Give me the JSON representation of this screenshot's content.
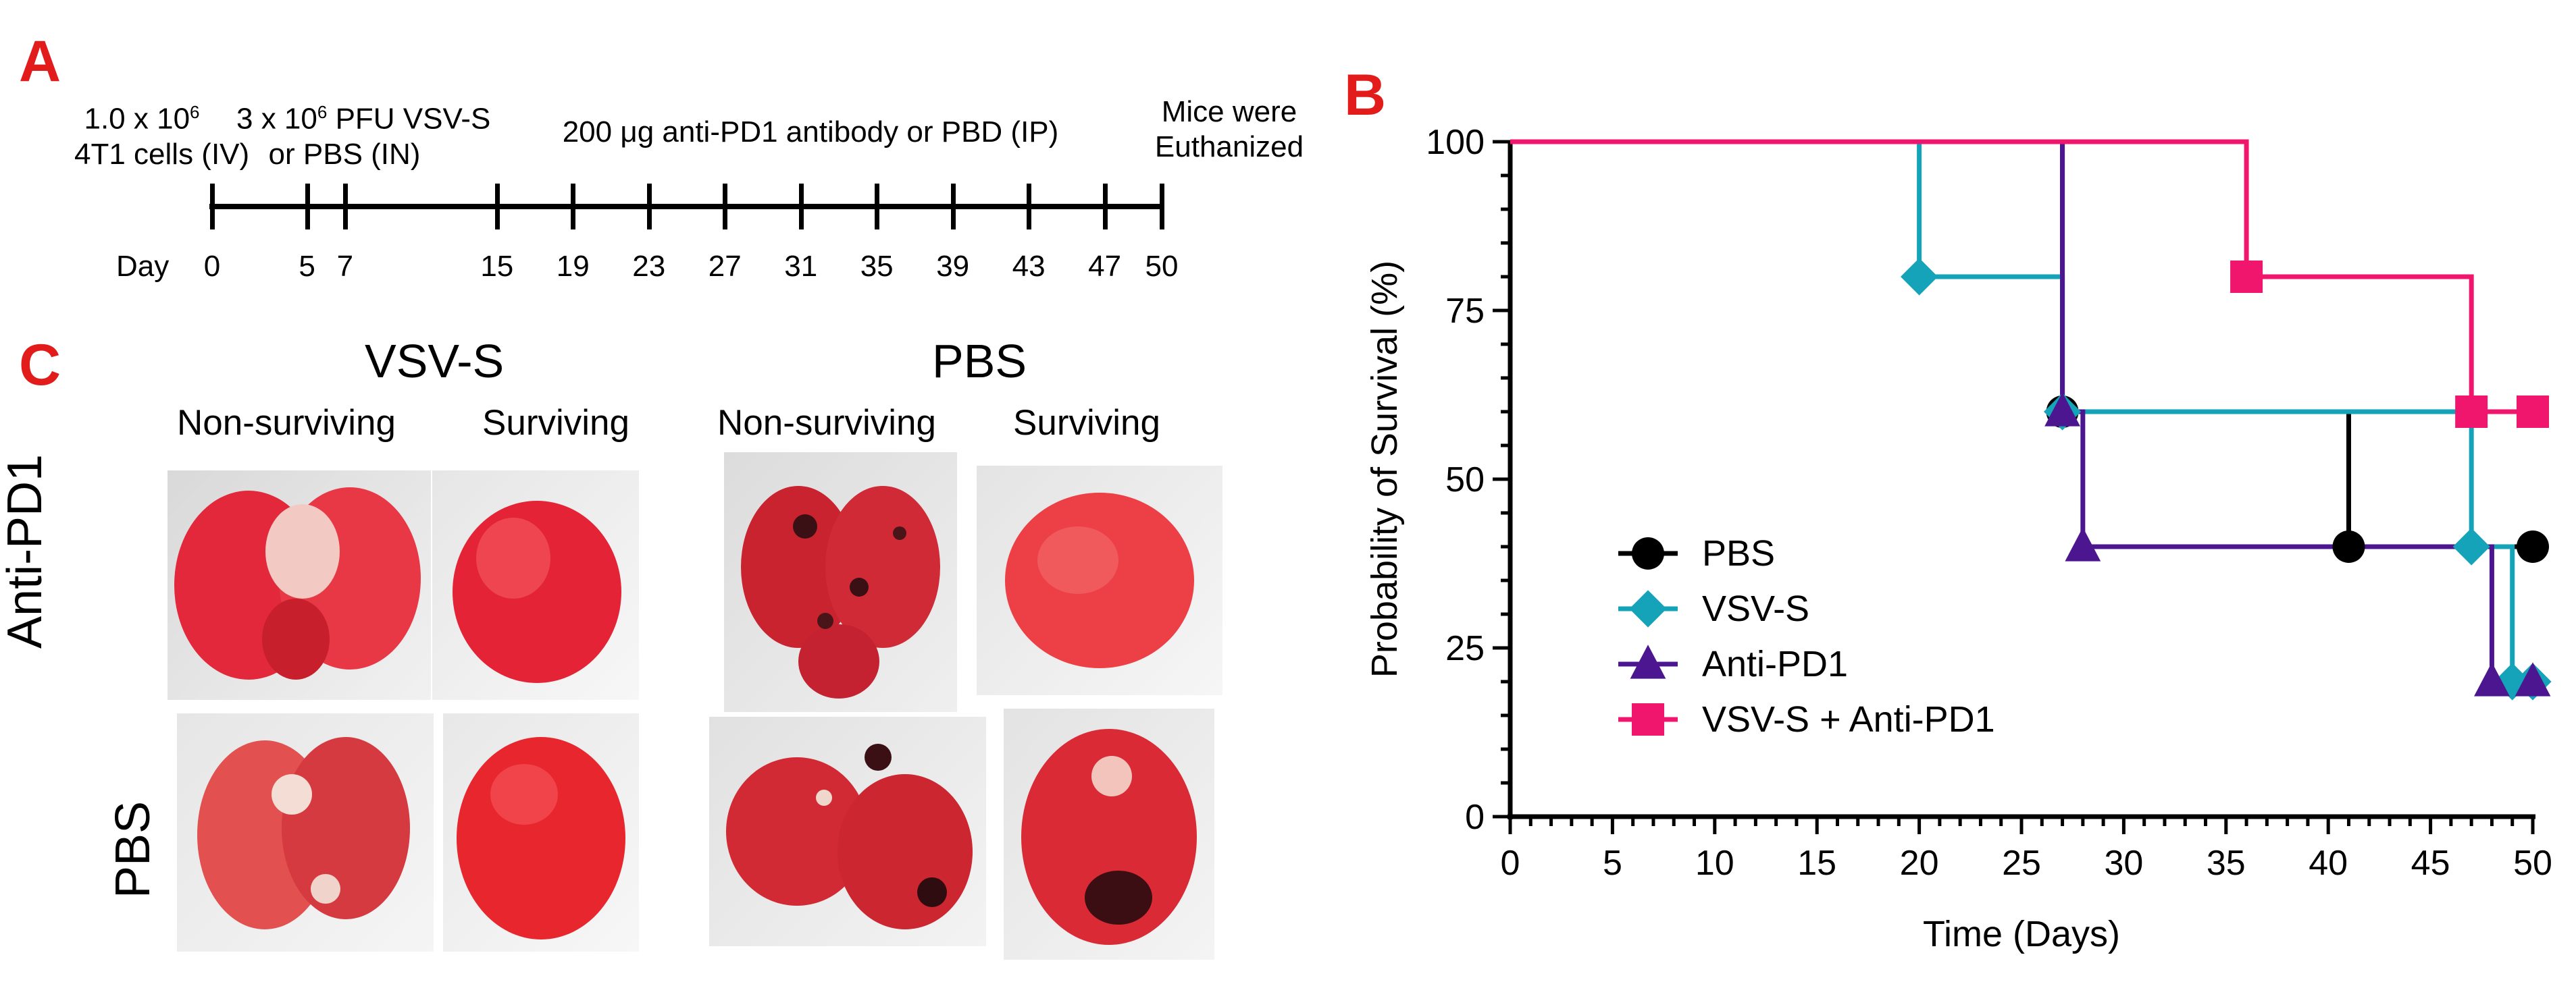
{
  "panels": {
    "a_letter": "A",
    "b_letter": "B",
    "c_letter": "C"
  },
  "timeline": {
    "event1_line1_base": "1.0 x 10",
    "event1_line1_exp": "6",
    "event1_line2": "4T1 cells (IV)",
    "event2_line1_base": "3 x 10",
    "event2_line1_exp": "6",
    "event2_line1_rest": " PFU VSV-S",
    "event2_line2": "or PBS (IN)",
    "event3": "200 μg anti-PD1 antibody or PBD (IP)",
    "event4_line1": "Mice were",
    "event4_line2": "Euthanized",
    "day_label": "Day",
    "days": [
      0,
      5,
      7,
      15,
      19,
      23,
      27,
      31,
      35,
      39,
      43,
      47,
      50
    ]
  },
  "photos": {
    "group_vsv": "VSV-S",
    "group_pbs": "PBS",
    "non_surviving": "Non-surviving",
    "surviving": "Surviving",
    "row_antipd1": "Anti-PD1",
    "row_pbs": "PBS"
  },
  "chart_data": {
    "type": "line",
    "subtype": "kaplan-meier-step",
    "ylabel": "Probability of Survival (%)",
    "xlabel": "Time (Days)",
    "xlim": [
      0,
      50
    ],
    "ylim": [
      0,
      100
    ],
    "xticks": [
      0,
      5,
      10,
      15,
      20,
      25,
      30,
      35,
      40,
      45,
      50
    ],
    "yticks": [
      0,
      25,
      50,
      75,
      100
    ],
    "grid": false,
    "legend_position": "center-left",
    "series": [
      {
        "name": "PBS",
        "color": "#000000",
        "marker": "circle",
        "x": [
          0,
          27,
          41,
          50
        ],
        "y": [
          100,
          60,
          40,
          40
        ],
        "marker_points": [
          [
            27,
            60
          ],
          [
            41,
            40
          ],
          [
            50,
            40
          ]
        ]
      },
      {
        "name": "VSV-S",
        "color": "#14a3b8",
        "marker": "diamond",
        "x": [
          0,
          20,
          27,
          47,
          49,
          50
        ],
        "y": [
          100,
          80,
          60,
          40,
          20,
          20
        ],
        "marker_points": [
          [
            20,
            80
          ],
          [
            27,
            60
          ],
          [
            47,
            40
          ],
          [
            49,
            20
          ],
          [
            50,
            20
          ]
        ]
      },
      {
        "name": "Anti-PD1",
        "color": "#4b1690",
        "marker": "triangle",
        "x": [
          0,
          27,
          28,
          48,
          50
        ],
        "y": [
          100,
          60,
          40,
          20,
          20
        ],
        "marker_points": [
          [
            27,
            60
          ],
          [
            28,
            40
          ],
          [
            48,
            20
          ],
          [
            50,
            20
          ]
        ]
      },
      {
        "name": "VSV-S + Anti-PD1",
        "color": "#f0166e",
        "marker": "square",
        "x": [
          0,
          36,
          47,
          50
        ],
        "y": [
          100,
          80,
          60,
          60
        ],
        "marker_points": [
          [
            36,
            80
          ],
          [
            47,
            60
          ],
          [
            50,
            60
          ]
        ]
      }
    ]
  }
}
